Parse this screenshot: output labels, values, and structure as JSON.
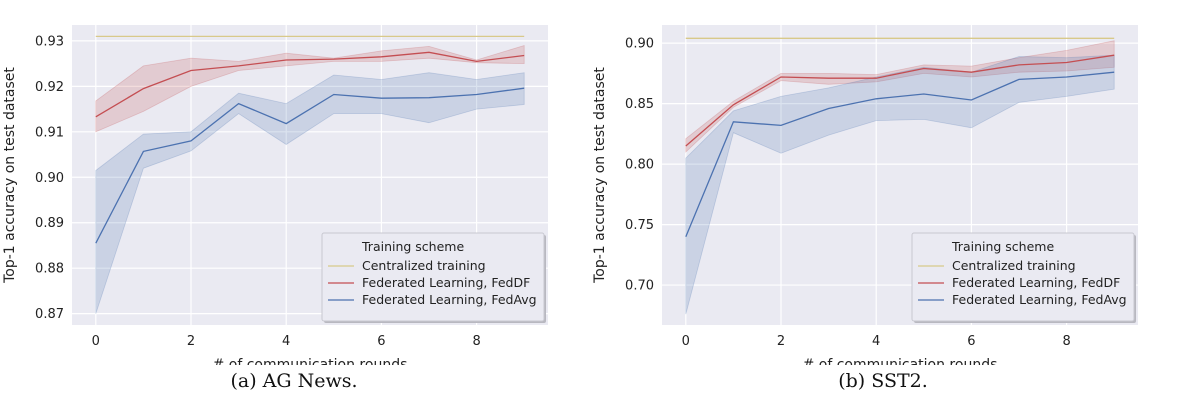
{
  "chart_data": [
    {
      "type": "line",
      "caption": "(a)  AG News.",
      "xlabel": "# of communication rounds",
      "ylabel": "Top-1 accuracy on test dataset",
      "xlim": [
        -0.5,
        9.5
      ],
      "ylim": [
        0.8675,
        0.9335
      ],
      "xticks": [
        0,
        2,
        4,
        6,
        8
      ],
      "yticks": [
        0.87,
        0.88,
        0.89,
        0.9,
        0.91,
        0.92,
        0.93
      ],
      "ytick_labels": [
        "0.87",
        "0.88",
        "0.89",
        "0.90",
        "0.91",
        "0.92",
        "0.93"
      ],
      "grid": true,
      "legend": {
        "title": "Training scheme",
        "placement": "lower-right",
        "entries": [
          "Centralized training",
          "Federated Learning, FedDF",
          "Federated Learning, FedAvg"
        ]
      },
      "x": [
        0,
        1,
        2,
        3,
        4,
        5,
        6,
        7,
        8,
        9
      ],
      "series": [
        {
          "name": "Centralized training",
          "color": "#d8c98a",
          "values": [
            0.931,
            0.931,
            0.931,
            0.931,
            0.931,
            0.931,
            0.931,
            0.931,
            0.931,
            0.931
          ]
        },
        {
          "name": "Federated Learning, FedDF",
          "color": "#c44e52",
          "values": [
            0.9133,
            0.9195,
            0.9235,
            0.9245,
            0.9258,
            0.926,
            0.9265,
            0.9275,
            0.9255,
            0.9268
          ],
          "lower": [
            0.91,
            0.9145,
            0.92,
            0.9235,
            0.9245,
            0.9255,
            0.9255,
            0.9262,
            0.9252,
            0.925
          ],
          "upper": [
            0.9168,
            0.9245,
            0.9262,
            0.9255,
            0.9273,
            0.9262,
            0.9278,
            0.9288,
            0.9258,
            0.929
          ]
        },
        {
          "name": "Federated Learning, FedAvg",
          "color": "#4c72b0",
          "values": [
            0.8855,
            0.9057,
            0.908,
            0.9162,
            0.9118,
            0.9182,
            0.9174,
            0.9175,
            0.9182,
            0.9196
          ],
          "lower": [
            0.87,
            0.902,
            0.9058,
            0.914,
            0.9072,
            0.914,
            0.914,
            0.912,
            0.915,
            0.916
          ],
          "upper": [
            0.9015,
            0.9095,
            0.91,
            0.9185,
            0.9162,
            0.9225,
            0.9215,
            0.923,
            0.9215,
            0.923
          ]
        }
      ]
    },
    {
      "type": "line",
      "caption": "(b)  SST2.",
      "xlabel": "# of communication rounds",
      "ylabel": "Top-1 accuracy on test dataset",
      "xlim": [
        -0.5,
        9.5
      ],
      "ylim": [
        0.667,
        0.915
      ],
      "xticks": [
        0,
        2,
        4,
        6,
        8
      ],
      "yticks": [
        0.7,
        0.75,
        0.8,
        0.85,
        0.9
      ],
      "ytick_labels": [
        "0.70",
        "0.75",
        "0.80",
        "0.85",
        "0.90"
      ],
      "grid": true,
      "legend": {
        "title": "Training scheme",
        "placement": "lower-right",
        "entries": [
          "Centralized training",
          "Federated Learning, FedDF",
          "Federated Learning, FedAvg"
        ]
      },
      "x": [
        0,
        1,
        2,
        3,
        4,
        5,
        6,
        7,
        8,
        9
      ],
      "series": [
        {
          "name": "Centralized training",
          "color": "#d8c98a",
          "values": [
            0.904,
            0.904,
            0.904,
            0.904,
            0.904,
            0.904,
            0.904,
            0.904,
            0.904,
            0.904
          ]
        },
        {
          "name": "Federated Learning, FedDF",
          "color": "#c44e52",
          "values": [
            0.815,
            0.849,
            0.872,
            0.871,
            0.871,
            0.879,
            0.876,
            0.882,
            0.884,
            0.89
          ],
          "lower": [
            0.81,
            0.847,
            0.869,
            0.866,
            0.868,
            0.875,
            0.872,
            0.876,
            0.877,
            0.88
          ],
          "upper": [
            0.821,
            0.852,
            0.875,
            0.875,
            0.874,
            0.882,
            0.881,
            0.888,
            0.894,
            0.902
          ]
        },
        {
          "name": "Federated Learning, FedAvg",
          "color": "#4c72b0",
          "values": [
            0.74,
            0.835,
            0.832,
            0.846,
            0.854,
            0.858,
            0.853,
            0.87,
            0.872,
            0.876
          ],
          "lower": [
            0.676,
            0.826,
            0.809,
            0.824,
            0.836,
            0.837,
            0.83,
            0.851,
            0.856,
            0.862
          ],
          "upper": [
            0.805,
            0.844,
            0.856,
            0.863,
            0.872,
            0.88,
            0.876,
            0.889,
            0.888,
            0.89
          ]
        }
      ]
    }
  ]
}
